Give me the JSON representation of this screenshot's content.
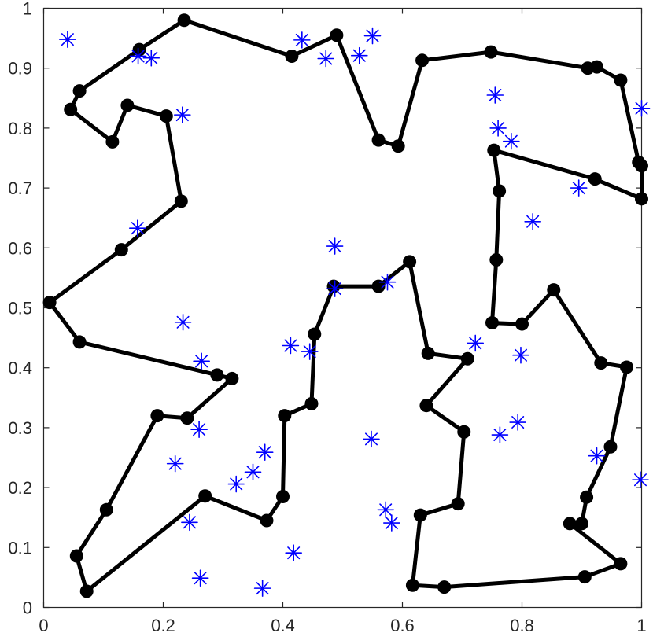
{
  "chart_data": {
    "type": "scatter",
    "title": "",
    "xlabel": "",
    "ylabel": "",
    "xlim": [
      0,
      1
    ],
    "ylim": [
      0,
      1
    ],
    "xticks": [
      "0",
      "0.2",
      "0.4",
      "0.6",
      "0.8",
      "1"
    ],
    "yticks": [
      "0",
      "0.1",
      "0.2",
      "0.3",
      "0.4",
      "0.5",
      "0.6",
      "0.7",
      "0.8",
      "0.9",
      "1"
    ],
    "grid": false,
    "legend": "none",
    "colors": {
      "tour": "#000000",
      "stars": "#0000ff",
      "axes": "#262626"
    },
    "series": [
      {
        "style": "line-with-circle-markers",
        "x": [
          0.235,
          0.415,
          0.49,
          0.56,
          0.593,
          0.633,
          0.748,
          0.91,
          0.925,
          0.965,
          0.995,
          1.0,
          1.0,
          0.922,
          0.753,
          0.762,
          0.757,
          0.75,
          0.8,
          0.853,
          0.932,
          0.975,
          0.948,
          0.908,
          0.9,
          0.88,
          0.965,
          0.905,
          0.67,
          0.617,
          0.63,
          0.693,
          0.703,
          0.64,
          0.709,
          0.643,
          0.612,
          0.56,
          0.485,
          0.453,
          0.448,
          0.403,
          0.4,
          0.373,
          0.27,
          0.072,
          0.055,
          0.105,
          0.19,
          0.24,
          0.315,
          0.29,
          0.06,
          0.01,
          0.13,
          0.23,
          0.205,
          0.14,
          0.115,
          0.045,
          0.06,
          0.16,
          0.235
        ],
        "y": [
          0.98,
          0.92,
          0.955,
          0.78,
          0.77,
          0.913,
          0.927,
          0.9,
          0.902,
          0.88,
          0.743,
          0.737,
          0.682,
          0.715,
          0.763,
          0.695,
          0.58,
          0.475,
          0.473,
          0.53,
          0.408,
          0.401,
          0.268,
          0.184,
          0.14,
          0.14,
          0.073,
          0.051,
          0.034,
          0.037,
          0.154,
          0.173,
          0.293,
          0.337,
          0.415,
          0.424,
          0.577,
          0.536,
          0.536,
          0.456,
          0.34,
          0.32,
          0.185,
          0.145,
          0.186,
          0.027,
          0.086,
          0.163,
          0.32,
          0.316,
          0.382,
          0.388,
          0.443,
          0.509,
          0.597,
          0.678,
          0.82,
          0.838,
          0.777,
          0.831,
          0.862,
          0.931,
          0.98
        ]
      },
      {
        "style": "asterisk-markers",
        "x": [
          0.04,
          0.158,
          0.18,
          0.232,
          0.157,
          0.233,
          0.264,
          0.26,
          0.22,
          0.244,
          0.262,
          0.322,
          0.35,
          0.37,
          0.366,
          0.418,
          0.413,
          0.445,
          0.487,
          0.487,
          0.432,
          0.472,
          0.528,
          0.55,
          0.575,
          0.548,
          0.572,
          0.582,
          0.722,
          0.755,
          0.76,
          0.782,
          0.895,
          0.818,
          0.798,
          0.793,
          0.763,
          0.925,
          0.998,
          1.0
        ],
        "y": [
          0.948,
          0.92,
          0.917,
          0.822,
          0.633,
          0.476,
          0.411,
          0.297,
          0.24,
          0.142,
          0.049,
          0.206,
          0.226,
          0.259,
          0.032,
          0.091,
          0.437,
          0.427,
          0.603,
          0.532,
          0.947,
          0.916,
          0.921,
          0.954,
          0.543,
          0.281,
          0.163,
          0.141,
          0.441,
          0.855,
          0.8,
          0.778,
          0.7,
          0.644,
          0.421,
          0.309,
          0.288,
          0.253,
          0.213,
          0.833
        ]
      }
    ]
  }
}
